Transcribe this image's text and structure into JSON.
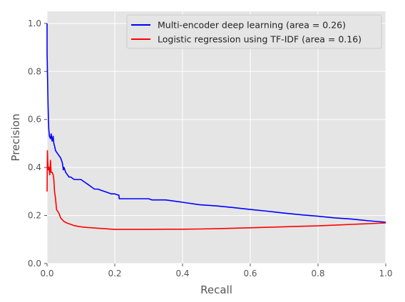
{
  "chart_data": {
    "type": "line",
    "title": "",
    "xlabel": "Recall",
    "ylabel": "Precision",
    "xlim": [
      0,
      1
    ],
    "ylim": [
      0,
      1.05
    ],
    "xticks": [
      "0.0",
      "0.2",
      "0.4",
      "0.6",
      "0.8",
      "1.0"
    ],
    "yticks": [
      "0.0",
      "0.2",
      "0.4",
      "0.6",
      "0.8",
      "1.0"
    ],
    "grid": true,
    "background": "#e5e5e5",
    "legend_position": "top-right",
    "series": [
      {
        "name": "Multi-encoder deep learning (area = 0.26)",
        "color": "#0000ff",
        "points": [
          [
            0.0,
            1.0
          ],
          [
            0.0,
            0.88
          ],
          [
            0.001,
            0.8
          ],
          [
            0.002,
            0.72
          ],
          [
            0.003,
            0.66
          ],
          [
            0.004,
            0.6
          ],
          [
            0.005,
            0.56
          ],
          [
            0.007,
            0.53
          ],
          [
            0.01,
            0.52
          ],
          [
            0.012,
            0.54
          ],
          [
            0.015,
            0.51
          ],
          [
            0.018,
            0.53
          ],
          [
            0.02,
            0.5
          ],
          [
            0.022,
            0.49
          ],
          [
            0.025,
            0.47
          ],
          [
            0.03,
            0.46
          ],
          [
            0.035,
            0.45
          ],
          [
            0.04,
            0.44
          ],
          [
            0.045,
            0.42
          ],
          [
            0.048,
            0.39
          ],
          [
            0.05,
            0.4
          ],
          [
            0.055,
            0.38
          ],
          [
            0.06,
            0.37
          ],
          [
            0.065,
            0.36
          ],
          [
            0.07,
            0.36
          ],
          [
            0.08,
            0.35
          ],
          [
            0.09,
            0.35
          ],
          [
            0.1,
            0.35
          ],
          [
            0.11,
            0.34
          ],
          [
            0.12,
            0.33
          ],
          [
            0.13,
            0.32
          ],
          [
            0.14,
            0.31
          ],
          [
            0.15,
            0.31
          ],
          [
            0.16,
            0.305
          ],
          [
            0.17,
            0.3
          ],
          [
            0.18,
            0.295
          ],
          [
            0.19,
            0.29
          ],
          [
            0.2,
            0.29
          ],
          [
            0.21,
            0.285
          ],
          [
            0.212,
            0.285
          ],
          [
            0.213,
            0.27
          ],
          [
            0.25,
            0.27
          ],
          [
            0.3,
            0.27
          ],
          [
            0.31,
            0.265
          ],
          [
            0.35,
            0.265
          ],
          [
            0.4,
            0.255
          ],
          [
            0.45,
            0.245
          ],
          [
            0.5,
            0.24
          ],
          [
            0.55,
            0.233
          ],
          [
            0.6,
            0.225
          ],
          [
            0.65,
            0.218
          ],
          [
            0.7,
            0.21
          ],
          [
            0.75,
            0.203
          ],
          [
            0.8,
            0.197
          ],
          [
            0.85,
            0.19
          ],
          [
            0.9,
            0.185
          ],
          [
            0.95,
            0.178
          ],
          [
            1.0,
            0.172
          ]
        ]
      },
      {
        "name": "Logistic regression using TF-IDF (area = 0.16)",
        "color": "#ff0000",
        "points": [
          [
            0.0,
            0.3
          ],
          [
            0.001,
            0.47
          ],
          [
            0.002,
            0.42
          ],
          [
            0.004,
            0.39
          ],
          [
            0.006,
            0.4
          ],
          [
            0.008,
            0.37
          ],
          [
            0.01,
            0.43
          ],
          [
            0.012,
            0.38
          ],
          [
            0.015,
            0.38
          ],
          [
            0.018,
            0.37
          ],
          [
            0.02,
            0.35
          ],
          [
            0.022,
            0.3
          ],
          [
            0.025,
            0.27
          ],
          [
            0.028,
            0.225
          ],
          [
            0.03,
            0.22
          ],
          [
            0.035,
            0.21
          ],
          [
            0.04,
            0.19
          ],
          [
            0.05,
            0.175
          ],
          [
            0.06,
            0.168
          ],
          [
            0.07,
            0.163
          ],
          [
            0.08,
            0.158
          ],
          [
            0.09,
            0.155
          ],
          [
            0.1,
            0.153
          ],
          [
            0.12,
            0.15
          ],
          [
            0.15,
            0.147
          ],
          [
            0.2,
            0.142
          ],
          [
            0.25,
            0.142
          ],
          [
            0.3,
            0.142
          ],
          [
            0.35,
            0.143
          ],
          [
            0.4,
            0.143
          ],
          [
            0.45,
            0.144
          ],
          [
            0.5,
            0.145
          ],
          [
            0.55,
            0.147
          ],
          [
            0.6,
            0.149
          ],
          [
            0.65,
            0.151
          ],
          [
            0.7,
            0.153
          ],
          [
            0.75,
            0.155
          ],
          [
            0.8,
            0.157
          ],
          [
            0.85,
            0.16
          ],
          [
            0.9,
            0.163
          ],
          [
            0.95,
            0.166
          ],
          [
            1.0,
            0.169
          ]
        ]
      }
    ]
  }
}
